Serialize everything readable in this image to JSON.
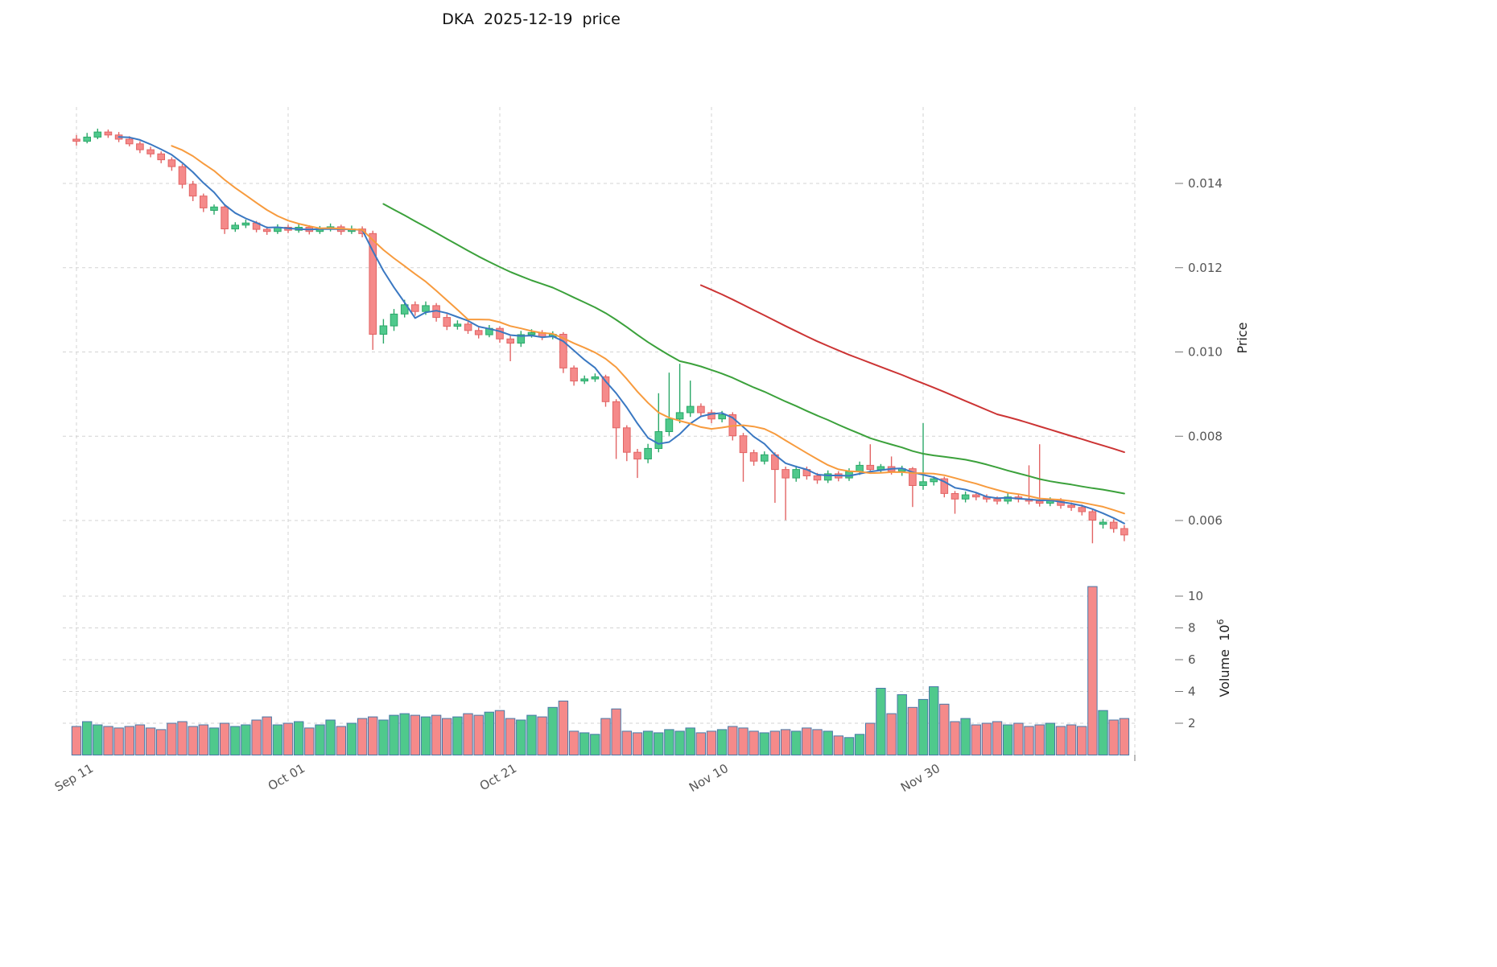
{
  "axes": {
    "price": {
      "label": "Price",
      "ticks": [
        {
          "label": "0.014",
          "value": 0.014
        },
        {
          "label": "0.012",
          "value": 0.012
        },
        {
          "label": "0.010",
          "value": 0.01
        },
        {
          "label": "0.008",
          "value": 0.008
        },
        {
          "label": "0.006",
          "value": 0.006
        }
      ]
    },
    "volume": {
      "label": "Volume",
      "scale_base": "10",
      "scale_exponent": "6",
      "ticks": [
        {
          "label": "2",
          "value": 2
        },
        {
          "label": "4",
          "value": 4
        },
        {
          "label": "6",
          "value": 6
        },
        {
          "label": "8",
          "value": 8
        },
        {
          "label": "10",
          "value": 10
        }
      ]
    },
    "x": {
      "ticks": [
        {
          "label": "Sep 11",
          "index": 0
        },
        {
          "label": "Oct 01",
          "index": 20
        },
        {
          "label": "Oct 21",
          "index": 40
        },
        {
          "label": "Nov 10",
          "index": 60
        },
        {
          "label": "Nov 30",
          "index": 80
        },
        {
          "label": "",
          "index": 100
        }
      ]
    }
  },
  "colors": {
    "up": "#4fc98c",
    "up_edge": "#2aa868",
    "down": "#f58a8a",
    "down_edge": "#e26464",
    "ma5": "#3a78c2",
    "ma10": "#f79b3e",
    "ma30": "#3ba13b",
    "ma60": "#cc3434",
    "grid": "#d3d3d3",
    "tick_text": "#555555",
    "volume_edge": "#4878a8"
  },
  "chart_data": {
    "type": "candlestick",
    "title": "DKA  2025-12-19  price",
    "symbol": "DKA",
    "date_shown": "2025-12-19",
    "legend_position": "none",
    "grid": "dashed",
    "price_ylim": [
      0.0052,
      0.0158
    ],
    "volume_ylim_millions": [
      0,
      11
    ],
    "columns": [
      "date",
      "open",
      "high",
      "low",
      "close",
      "volume_millions"
    ],
    "moving_averages": [
      {
        "name": "MA5",
        "window": 5,
        "color_key": "ma5"
      },
      {
        "name": "MA10",
        "window": 10,
        "color_key": "ma10"
      },
      {
        "name": "MA30",
        "window": 30,
        "color_key": "ma30"
      },
      {
        "name": "MA60",
        "window": 60,
        "color_key": "ma60"
      }
    ],
    "candles": [
      [
        "2025-09-11",
        0.01505,
        0.01515,
        0.0149,
        0.015,
        1.8
      ],
      [
        "2025-09-12",
        0.015,
        0.0152,
        0.01495,
        0.0151,
        2.1
      ],
      [
        "2025-09-13",
        0.0151,
        0.0153,
        0.01505,
        0.01522,
        1.9
      ],
      [
        "2025-09-14",
        0.01522,
        0.01528,
        0.01508,
        0.01515,
        1.8
      ],
      [
        "2025-09-15",
        0.01515,
        0.01522,
        0.01498,
        0.01505,
        1.7
      ],
      [
        "2025-09-16",
        0.01505,
        0.01512,
        0.01488,
        0.01494,
        1.8
      ],
      [
        "2025-09-17",
        0.01494,
        0.015,
        0.01472,
        0.0148,
        1.9
      ],
      [
        "2025-09-18",
        0.0148,
        0.01487,
        0.01462,
        0.0147,
        1.7
      ],
      [
        "2025-09-19",
        0.0147,
        0.01476,
        0.01448,
        0.01456,
        1.6
      ],
      [
        "2025-09-20",
        0.01456,
        0.01462,
        0.0143,
        0.0144,
        2.0
      ],
      [
        "2025-09-21",
        0.0144,
        0.01446,
        0.01388,
        0.01398,
        2.1
      ],
      [
        "2025-09-22",
        0.01398,
        0.01406,
        0.01358,
        0.0137,
        1.8
      ],
      [
        "2025-09-23",
        0.0137,
        0.01376,
        0.01332,
        0.01342,
        1.9
      ],
      [
        "2025-09-24",
        0.01336,
        0.0135,
        0.01326,
        0.01344,
        1.7
      ],
      [
        "2025-09-25",
        0.01344,
        0.01348,
        0.0128,
        0.01292,
        2.0
      ],
      [
        "2025-09-26",
        0.01292,
        0.01308,
        0.01285,
        0.01301,
        1.8
      ],
      [
        "2025-09-27",
        0.01301,
        0.01314,
        0.01294,
        0.01306,
        1.9
      ],
      [
        "2025-09-28",
        0.01306,
        0.01311,
        0.01284,
        0.01291,
        2.2
      ],
      [
        "2025-09-29",
        0.01291,
        0.01298,
        0.01278,
        0.01286,
        2.4
      ],
      [
        "2025-09-30",
        0.01286,
        0.01303,
        0.0128,
        0.01296,
        1.9
      ],
      [
        "2025-10-01",
        0.01296,
        0.01302,
        0.01282,
        0.01289,
        2.0
      ],
      [
        "2025-10-02",
        0.01289,
        0.01304,
        0.01283,
        0.01296,
        2.1
      ],
      [
        "2025-10-03",
        0.01296,
        0.01301,
        0.01279,
        0.01286,
        1.7
      ],
      [
        "2025-10-04",
        0.01286,
        0.01299,
        0.0128,
        0.01292,
        1.9
      ],
      [
        "2025-10-05",
        0.01292,
        0.01305,
        0.01286,
        0.01297,
        2.2
      ],
      [
        "2025-10-06",
        0.01297,
        0.01302,
        0.01278,
        0.01286,
        1.8
      ],
      [
        "2025-10-07",
        0.01286,
        0.013,
        0.0128,
        0.01292,
        2.0
      ],
      [
        "2025-10-08",
        0.01292,
        0.01298,
        0.01272,
        0.01281,
        2.3
      ],
      [
        "2025-10-09",
        0.01281,
        0.01288,
        0.01005,
        0.01042,
        2.4
      ],
      [
        "2025-10-10",
        0.01042,
        0.01078,
        0.0102,
        0.01062,
        2.2
      ],
      [
        "2025-10-11",
        0.01062,
        0.01102,
        0.0105,
        0.0109,
        2.5
      ],
      [
        "2025-10-12",
        0.0109,
        0.01124,
        0.01082,
        0.01112,
        2.6
      ],
      [
        "2025-10-13",
        0.01112,
        0.0112,
        0.01086,
        0.01096,
        2.5
      ],
      [
        "2025-10-14",
        0.01096,
        0.0112,
        0.01088,
        0.0111,
        2.4
      ],
      [
        "2025-10-15",
        0.0111,
        0.01116,
        0.01072,
        0.01082,
        2.5
      ],
      [
        "2025-10-16",
        0.01082,
        0.0109,
        0.01052,
        0.01061,
        2.3
      ],
      [
        "2025-10-17",
        0.01061,
        0.01075,
        0.01053,
        0.01066,
        2.4
      ],
      [
        "2025-10-18",
        0.01066,
        0.01072,
        0.01043,
        0.01051,
        2.6
      ],
      [
        "2025-10-19",
        0.01051,
        0.01058,
        0.01032,
        0.01041,
        2.5
      ],
      [
        "2025-10-20",
        0.01041,
        0.01064,
        0.01035,
        0.01056,
        2.7
      ],
      [
        "2025-10-21",
        0.01056,
        0.01061,
        0.01022,
        0.01031,
        2.8
      ],
      [
        "2025-10-22",
        0.01031,
        0.01038,
        0.00978,
        0.01021,
        2.3
      ],
      [
        "2025-10-23",
        0.01021,
        0.0105,
        0.01012,
        0.01041,
        2.2
      ],
      [
        "2025-10-24",
        0.01041,
        0.01054,
        0.01034,
        0.01046,
        2.5
      ],
      [
        "2025-10-25",
        0.01046,
        0.01052,
        0.01028,
        0.01036,
        2.4
      ],
      [
        "2025-10-26",
        0.01036,
        0.01049,
        0.0103,
        0.01042,
        3.0
      ],
      [
        "2025-10-27",
        0.01042,
        0.01047,
        0.0095,
        0.00962,
        3.4
      ],
      [
        "2025-10-28",
        0.00962,
        0.00968,
        0.0092,
        0.00931,
        1.5
      ],
      [
        "2025-10-29",
        0.00931,
        0.00944,
        0.00924,
        0.00936,
        1.4
      ],
      [
        "2025-10-30",
        0.00936,
        0.00949,
        0.00929,
        0.00941,
        1.3
      ],
      [
        "2025-10-31",
        0.00941,
        0.00946,
        0.0087,
        0.00882,
        2.3
      ],
      [
        "2025-11-01",
        0.00882,
        0.00888,
        0.00746,
        0.0082,
        2.9
      ],
      [
        "2025-11-02",
        0.0082,
        0.00826,
        0.00741,
        0.00762,
        1.5
      ],
      [
        "2025-11-03",
        0.00762,
        0.0077,
        0.00701,
        0.00746,
        1.4
      ],
      [
        "2025-11-04",
        0.00746,
        0.00782,
        0.00736,
        0.00771,
        1.5
      ],
      [
        "2025-11-05",
        0.00771,
        0.00902,
        0.00762,
        0.00811,
        1.4
      ],
      [
        "2025-11-06",
        0.00811,
        0.00951,
        0.00801,
        0.00841,
        1.6
      ],
      [
        "2025-11-07",
        0.00841,
        0.00972,
        0.00831,
        0.00856,
        1.5
      ],
      [
        "2025-11-08",
        0.00856,
        0.00932,
        0.00846,
        0.00871,
        1.7
      ],
      [
        "2025-11-09",
        0.00871,
        0.00878,
        0.00846,
        0.00856,
        1.4
      ],
      [
        "2025-11-10",
        0.00856,
        0.00863,
        0.00831,
        0.00841,
        1.5
      ],
      [
        "2025-11-11",
        0.00841,
        0.0086,
        0.00833,
        0.00851,
        1.6
      ],
      [
        "2025-11-12",
        0.00851,
        0.00857,
        0.0079,
        0.00801,
        1.8
      ],
      [
        "2025-11-13",
        0.00801,
        0.00808,
        0.00692,
        0.00761,
        1.7
      ],
      [
        "2025-11-14",
        0.00761,
        0.00768,
        0.0073,
        0.00741,
        1.5
      ],
      [
        "2025-11-15",
        0.00741,
        0.00764,
        0.00733,
        0.00756,
        1.4
      ],
      [
        "2025-11-16",
        0.00756,
        0.00762,
        0.00642,
        0.00721,
        1.5
      ],
      [
        "2025-11-17",
        0.00721,
        0.00728,
        0.00601,
        0.00701,
        1.6
      ],
      [
        "2025-11-18",
        0.00701,
        0.0073,
        0.00692,
        0.00721,
        1.5
      ],
      [
        "2025-11-19",
        0.00721,
        0.00728,
        0.00697,
        0.00706,
        1.7
      ],
      [
        "2025-11-20",
        0.00706,
        0.00713,
        0.00687,
        0.00696,
        1.6
      ],
      [
        "2025-11-21",
        0.00696,
        0.00719,
        0.00689,
        0.00711,
        1.5
      ],
      [
        "2025-11-22",
        0.00711,
        0.00717,
        0.00693,
        0.00701,
        1.2
      ],
      [
        "2025-11-23",
        0.00701,
        0.00724,
        0.00694,
        0.00716,
        1.1
      ],
      [
        "2025-11-24",
        0.00716,
        0.0074,
        0.00708,
        0.00731,
        1.3
      ],
      [
        "2025-11-25",
        0.00731,
        0.00781,
        0.00712,
        0.00721,
        2.0
      ],
      [
        "2025-11-26",
        0.00721,
        0.00734,
        0.00712,
        0.00728,
        4.2
      ],
      [
        "2025-11-27",
        0.00728,
        0.00752,
        0.00709,
        0.00717,
        2.6
      ],
      [
        "2025-11-28",
        0.00717,
        0.0073,
        0.00706,
        0.00723,
        3.8
      ],
      [
        "2025-11-29",
        0.00723,
        0.00727,
        0.00632,
        0.00683,
        3.0
      ],
      [
        "2025-11-30",
        0.00683,
        0.00831,
        0.00673,
        0.00692,
        3.5
      ],
      [
        "2025-12-01",
        0.00692,
        0.00705,
        0.00683,
        0.00699,
        4.3
      ],
      [
        "2025-12-02",
        0.00699,
        0.00704,
        0.00655,
        0.00664,
        3.2
      ],
      [
        "2025-12-03",
        0.00664,
        0.0067,
        0.00616,
        0.00651,
        2.1
      ],
      [
        "2025-12-04",
        0.00651,
        0.00669,
        0.00643,
        0.00661,
        2.3
      ],
      [
        "2025-12-05",
        0.00661,
        0.00667,
        0.00648,
        0.00656,
        1.9
      ],
      [
        "2025-12-06",
        0.00656,
        0.00662,
        0.00643,
        0.00651,
        2.0
      ],
      [
        "2025-12-07",
        0.00651,
        0.00657,
        0.00638,
        0.00646,
        2.1
      ],
      [
        "2025-12-08",
        0.00646,
        0.00664,
        0.00639,
        0.00656,
        1.9
      ],
      [
        "2025-12-09",
        0.00656,
        0.00662,
        0.00643,
        0.00651,
        2.0
      ],
      [
        "2025-12-10",
        0.00651,
        0.00731,
        0.00638,
        0.00646,
        1.8
      ],
      [
        "2025-12-11",
        0.00646,
        0.00781,
        0.00633,
        0.00641,
        1.9
      ],
      [
        "2025-12-12",
        0.00641,
        0.00655,
        0.00634,
        0.00647,
        2.0
      ],
      [
        "2025-12-13",
        0.00647,
        0.00653,
        0.00628,
        0.00636,
        1.8
      ],
      [
        "2025-12-14",
        0.00636,
        0.00643,
        0.00623,
        0.00631,
        1.9
      ],
      [
        "2025-12-15",
        0.00631,
        0.00638,
        0.00612,
        0.00621,
        1.8
      ],
      [
        "2025-12-16",
        0.00621,
        0.00628,
        0.00546,
        0.00601,
        10.6
      ],
      [
        "2025-12-17",
        0.00591,
        0.00604,
        0.00581,
        0.00596,
        2.8
      ],
      [
        "2025-12-18",
        0.00596,
        0.00603,
        0.00571,
        0.00581,
        2.2
      ],
      [
        "2025-12-19",
        0.00581,
        0.00589,
        0.00551,
        0.00566,
        2.3
      ]
    ]
  }
}
